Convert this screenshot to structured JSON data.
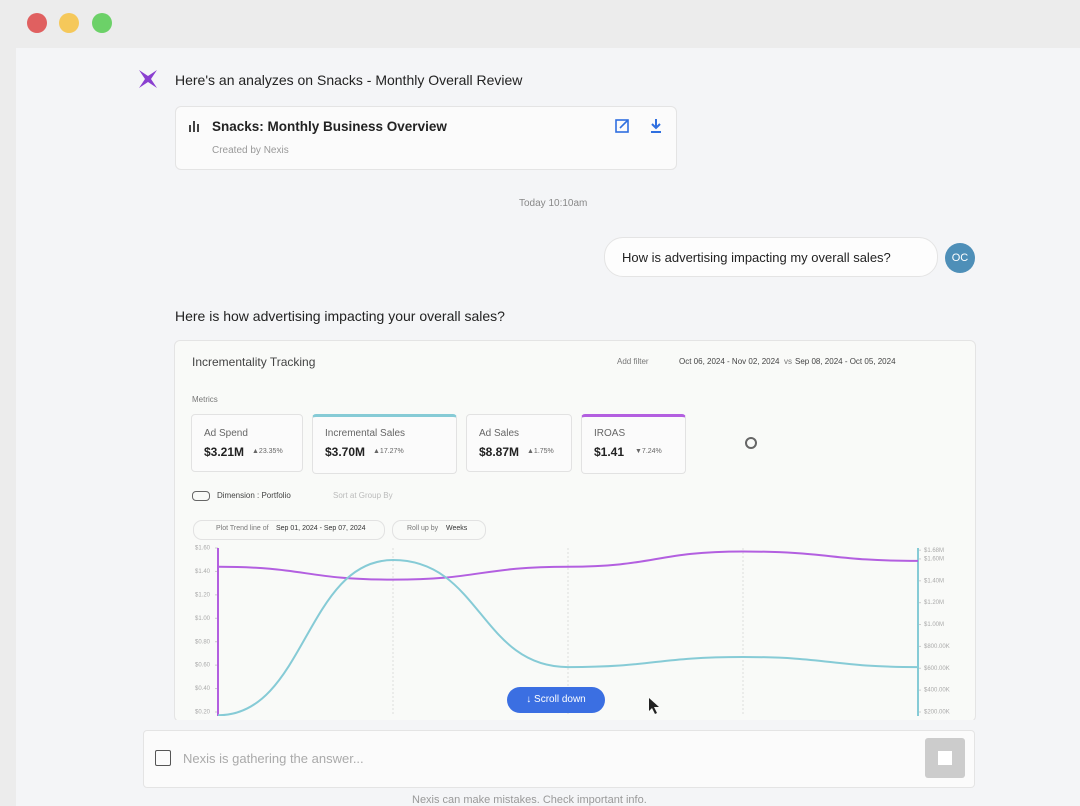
{
  "header_message": "Here's an analyzes on Snacks - Monthly Overall Review",
  "report_card": {
    "title": "Snacks: Monthly Business Overview",
    "subtitle": "Created by Nexis"
  },
  "timestamp": "Today 10:10am",
  "user_message": {
    "text": "How is advertising impacting my overall sales?",
    "avatar": "OC"
  },
  "answer_intro": "Here is how advertising impacting your overall sales?",
  "widget": {
    "title": "Incrementality Tracking",
    "add_filter": "Add filter",
    "date_range": "Oct 06, 2024 - Nov 02, 2024",
    "compare": "vs",
    "compare_range": "Sep 08, 2024 - Oct 05, 2024",
    "metrics_label": "Metrics",
    "metrics": [
      {
        "name": "Ad Spend",
        "value": "$3.21M",
        "change": "▲23.35%"
      },
      {
        "name": "Incremental Sales",
        "value": "$3.70M",
        "change": "▲17.27%"
      },
      {
        "name": "Ad Sales",
        "value": "$8.87M",
        "change": "▲1.75%"
      },
      {
        "name": "IROAS",
        "value": "$1.41",
        "change": "▼7.24%"
      }
    ],
    "dimension": "Dimension : Portfolio",
    "sort": "Sort at Group By",
    "trend": "Plot Trend line of",
    "trend_range": "Sep 01, 2024 - Sep 07, 2024",
    "rollup": "Roll up by",
    "rollup_value": "Weeks"
  },
  "chart_data": {
    "type": "line",
    "categories": [
      null,
      null,
      null,
      null,
      null
    ],
    "series": [
      {
        "name": "IROAS",
        "color": "#b35fe0",
        "axis": "y",
        "values": [
          1.44,
          1.33,
          1.44,
          1.57,
          1.49
        ]
      },
      {
        "name": "Incremental Sales",
        "color": "#86cbd6",
        "axis": "y2",
        "values": [
          170000,
          1590000,
          611000,
          703000,
          611000
        ]
      }
    ],
    "ylim": [
      0.2,
      1.6
    ],
    "yticks": [
      {
        "value": 0.2,
        "label": "$0.20"
      },
      {
        "value": 0.4,
        "label": "$0.40"
      },
      {
        "value": 0.6,
        "label": "$0.60"
      },
      {
        "value": 0.8,
        "label": "$0.80"
      },
      {
        "value": 1.0,
        "label": "$1.00"
      },
      {
        "value": 1.2,
        "label": "$1.20"
      },
      {
        "value": 1.4,
        "label": "$1.40"
      },
      {
        "value": 1.6,
        "label": "$1.60"
      }
    ],
    "y2lim": [
      200000,
      1700000
    ],
    "y2ticks": [
      {
        "value": 200000,
        "label": "$200.00K"
      },
      {
        "value": 400000,
        "label": "$400.00K"
      },
      {
        "value": 600000,
        "label": "$600.00K"
      },
      {
        "value": 800000,
        "label": "$800.00K"
      },
      {
        "value": 1000000,
        "label": "$1.00M"
      },
      {
        "value": 1200000,
        "label": "$1.20M"
      },
      {
        "value": 1400000,
        "label": "$1.40M"
      },
      {
        "value": 1600000,
        "label": "$1.60M"
      },
      {
        "value": 1680000,
        "label": "$1.68M"
      }
    ],
    "grid": true
  },
  "scroll_button": "Scroll down",
  "input_placeholder": "Nexis is gathering the answer...",
  "footer": "Nexis can make mistakes. Check important info."
}
